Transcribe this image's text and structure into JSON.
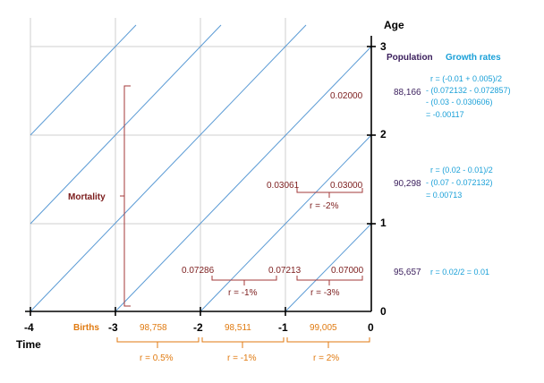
{
  "axes": {
    "age_label": "Age",
    "time_label": "Time",
    "age_ticks": [
      "0",
      "1",
      "2",
      "3"
    ],
    "time_ticks": [
      "-4",
      "-3",
      "-2",
      "-1",
      "0"
    ]
  },
  "headers": {
    "population": "Population",
    "growth_rates": "Growth rates"
  },
  "mortality_label": "Mortality",
  "births_label": "Births",
  "mortality_rates": {
    "top": "0.02000",
    "mid_left": "0.03061",
    "mid_right": "0.03000",
    "low_left": "0.07286",
    "low_mid": "0.07213",
    "low_right": "0.07000"
  },
  "cohort_growth": {
    "mid": "r = -2%",
    "low_left": "r = -1%",
    "low_right": "r = -3%"
  },
  "births": {
    "values": [
      "98,758",
      "98,511",
      "99,005"
    ],
    "rates": [
      "r = 0.5%",
      "r = -1%",
      "r = 2%"
    ]
  },
  "population": {
    "age_2_3": "88,166",
    "age_1_2": "90,298",
    "age_0_1": "95,657"
  },
  "growth_formulas": {
    "age_2_3": [
      "r = (-0.01 + 0.005)/2",
      "- (0.072132 - 0.072857)",
      "- (0.03 - 0.030606)",
      "= -0.00117"
    ],
    "age_1_2": [
      "r = (0.02 - 0.01)/2",
      "- (0.07 - 0.072132)",
      "= 0.00713"
    ],
    "age_0_1": "r = 0.02/2 = 0.01"
  },
  "colors": {
    "mortality": "#7b1c1c",
    "births": "#e07a10",
    "growth": "#1aa0d8",
    "population": "#3a1e5c",
    "lifelines": "#5b9bd5",
    "grid": "#cfcfcf"
  }
}
